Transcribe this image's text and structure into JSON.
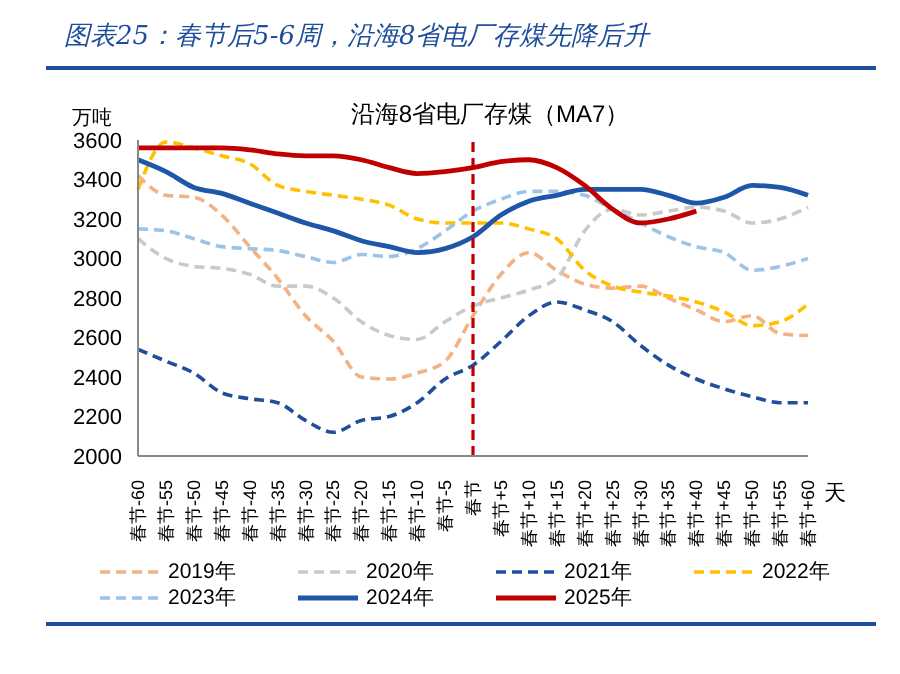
{
  "chart_data": {
    "type": "line",
    "title": "图表25：春节后5-6周，沿海8省电厂存煤先降后升",
    "subtitle": "沿海8省电厂存煤（MA7）",
    "ylabel": "万吨",
    "xlabel": "天",
    "categories": [
      "春节-60",
      "春节-55",
      "春节-50",
      "春节-45",
      "春节-40",
      "春节-35",
      "春节-30",
      "春节-25",
      "春节-20",
      "春节-15",
      "春节-10",
      "春节-5",
      "春节",
      "春节+5",
      "春节+10",
      "春节+15",
      "春节+20",
      "春节+25",
      "春节+30",
      "春节+35",
      "春节+40",
      "春节+45",
      "春节+50",
      "春节+55",
      "春节+60"
    ],
    "ylim": [
      2000,
      3600
    ],
    "yticks": [
      2000,
      2200,
      2400,
      2600,
      2800,
      3000,
      3200,
      3400,
      3600
    ],
    "grid": false,
    "legend": "bottom",
    "marker": "none",
    "ref_lines": [
      {
        "axis": "x",
        "value": "春节",
        "color": "#c00000",
        "line_style": "dashed"
      }
    ],
    "series": [
      {
        "name": "2019年",
        "color": "#f4b183",
        "line_style": "dashed",
        "values": [
          3420,
          3320,
          3310,
          3220,
          3060,
          2900,
          2710,
          2580,
          2400,
          2390,
          2420,
          2480,
          2710,
          2920,
          3030,
          2940,
          2870,
          2850,
          2860,
          2800,
          2740,
          2680,
          2710,
          2620,
          2610
        ]
      },
      {
        "name": "2020年",
        "color": "#c9c9c9",
        "line_style": "dashed",
        "values": [
          3100,
          3000,
          2960,
          2950,
          2920,
          2860,
          2860,
          2800,
          2680,
          2610,
          2590,
          2680,
          2760,
          2800,
          2840,
          2900,
          3140,
          3250,
          3220,
          3240,
          3260,
          3240,
          3180,
          3200,
          3260
        ]
      },
      {
        "name": "2021年",
        "color": "#1f4e9a",
        "line_style": "dashed",
        "values": [
          2540,
          2480,
          2420,
          2320,
          2290,
          2270,
          2180,
          2120,
          2180,
          2200,
          2270,
          2390,
          2460,
          2580,
          2710,
          2780,
          2740,
          2680,
          2560,
          2460,
          2390,
          2340,
          2300,
          2270,
          2270
        ]
      },
      {
        "name": "2022年",
        "color": "#ffc000",
        "line_style": "dashed",
        "values": [
          3350,
          3590,
          3560,
          3520,
          3480,
          3370,
          3340,
          3320,
          3300,
          3270,
          3200,
          3180,
          3180,
          3180,
          3150,
          3100,
          2940,
          2860,
          2830,
          2810,
          2780,
          2730,
          2660,
          2680,
          2770
        ]
      },
      {
        "name": "2023年",
        "color": "#9dc3e6",
        "line_style": "dashed",
        "values": [
          3150,
          3140,
          3100,
          3060,
          3050,
          3040,
          3010,
          2980,
          3020,
          3010,
          3050,
          3140,
          3240,
          3300,
          3340,
          3340,
          3320,
          3250,
          3180,
          3110,
          3060,
          3030,
          2940,
          2960,
          3000
        ]
      },
      {
        "name": "2024年",
        "color": "#1f57a8",
        "line_style": "solid",
        "values": [
          3500,
          3440,
          3360,
          3330,
          3280,
          3230,
          3180,
          3140,
          3090,
          3060,
          3030,
          3050,
          3110,
          3220,
          3290,
          3320,
          3350,
          3350,
          3350,
          3320,
          3280,
          3310,
          3370,
          3360,
          3320
        ]
      },
      {
        "name": "2025年",
        "color": "#c00000",
        "line_style": "solid",
        "values": [
          3560,
          3560,
          3560,
          3560,
          3550,
          3530,
          3520,
          3520,
          3500,
          3460,
          3430,
          3440,
          3460,
          3490,
          3500,
          3460,
          3370,
          3250,
          3180,
          3200,
          3240,
          null,
          null,
          null,
          null
        ]
      }
    ]
  }
}
